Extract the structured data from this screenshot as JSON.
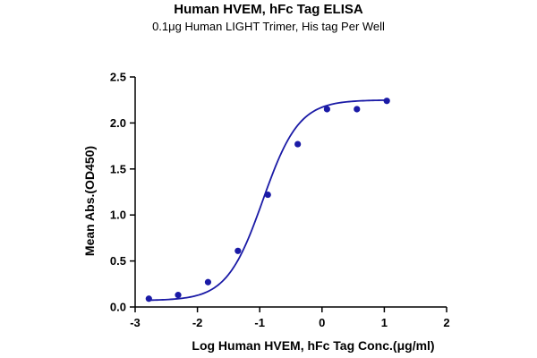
{
  "chart_data": {
    "type": "scatter",
    "title": "Human HVEM, hFc Tag ELISA",
    "subtitle": "0.1μg Human LIGHT Trimer, His tag Per Well",
    "xlabel": "Log Human HVEM, hFc Tag Conc.(μg/ml)",
    "ylabel": "Mean Abs.(OD450)",
    "xlim": [
      -3,
      2
    ],
    "ylim": [
      0,
      2.5
    ],
    "xticks": [
      "-3",
      "-2",
      "-1",
      "0",
      "1",
      "2"
    ],
    "yticks": [
      "0.0",
      "0.5",
      "1.0",
      "1.5",
      "2.0",
      "2.5"
    ],
    "grid": false,
    "legend": "none",
    "series": [
      {
        "x": [
          -2.78,
          -2.31,
          -1.83,
          -1.35,
          -0.87,
          -0.39,
          0.08,
          0.56,
          1.04
        ],
        "y": [
          0.09,
          0.13,
          0.27,
          0.61,
          1.22,
          1.77,
          2.15,
          2.15,
          2.24
        ],
        "fit": "4PL sigmoid"
      }
    ],
    "color": "#1a1aa6"
  }
}
